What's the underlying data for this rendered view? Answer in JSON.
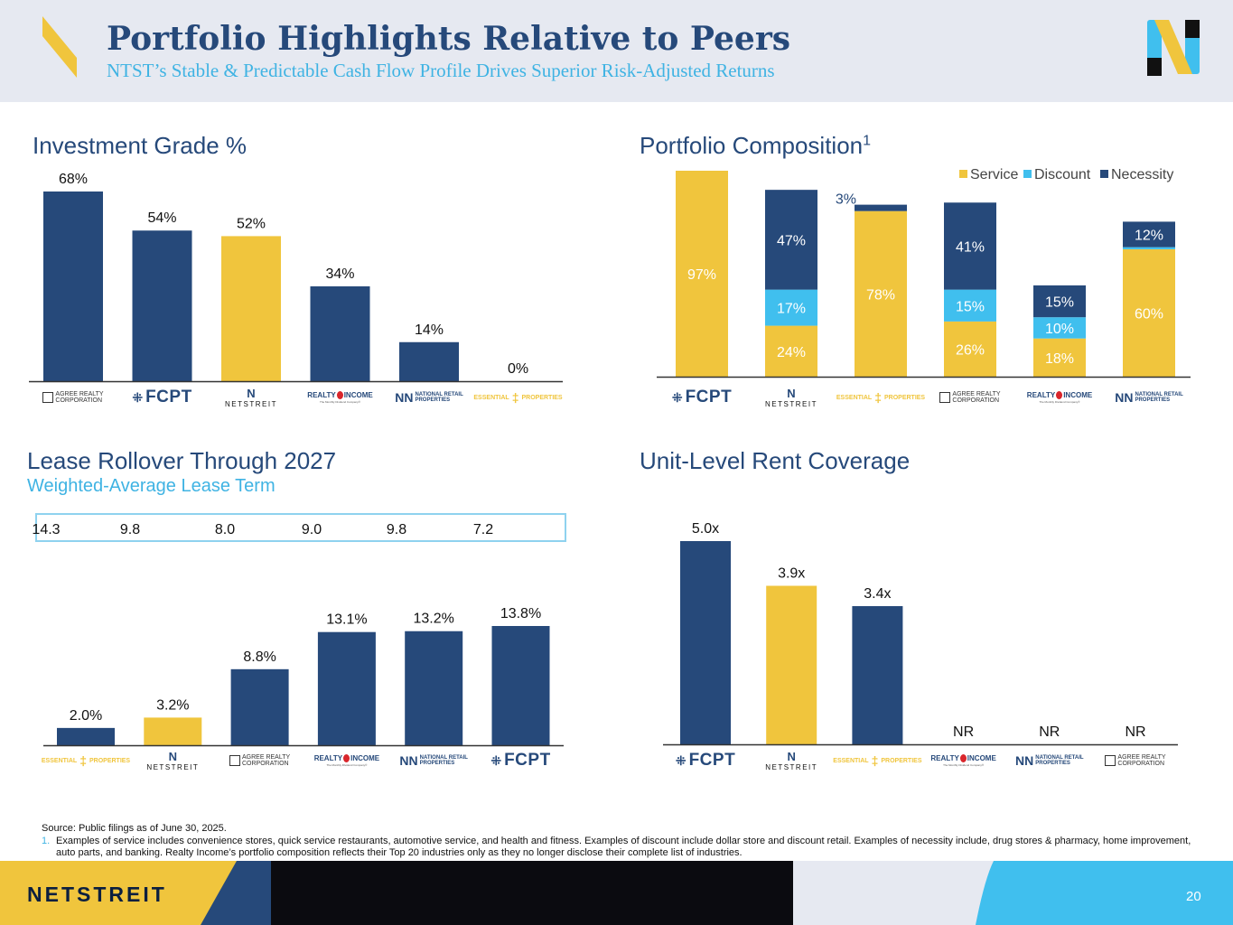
{
  "header": {
    "title": "Portfolio Highlights Relative to Peers",
    "subtitle": "NTST’s Stable & Predictable Cash Flow Profile Drives Superior Risk-Adjusted Returns"
  },
  "colors": {
    "navy": "#26497a",
    "gold": "#f0c53d",
    "cyan": "#40bfee",
    "dark": "#0b0b10",
    "header_bg": "#e6e9f1"
  },
  "logos": {
    "agree": {
      "line1": "AGREE REALTY",
      "line2": "CORPORATION"
    },
    "fcpt": {
      "text": "FCPT"
    },
    "netstreit": {
      "text": "NETSTREIT"
    },
    "realty": {
      "left": "REALTY",
      "right": "INCOME",
      "tag": "The Monthly Dividend Company®"
    },
    "nnn": {
      "line1": "NATIONAL RETAIL",
      "line2": "PROPERTIES"
    },
    "essential": {
      "left": "ESSENTIAL",
      "right": "PROPERTIES"
    }
  },
  "chart_data": [
    {
      "id": "ig",
      "type": "bar",
      "title": "Investment Grade %",
      "categories": [
        "Agree Realty",
        "FCPT",
        "NETSTREIT",
        "Realty Income",
        "National Retail Properties",
        "Essential Properties"
      ],
      "values": [
        68,
        54,
        52,
        34,
        14,
        0
      ],
      "labels": [
        "68%",
        "54%",
        "52%",
        "34%",
        "14%",
        "0%"
      ],
      "highlight": "NETSTREIT",
      "ylim": [
        0,
        68
      ]
    },
    {
      "id": "comp",
      "type": "bar",
      "stacked": true,
      "title": "Portfolio Composition",
      "title_sup": "1",
      "categories": [
        "FCPT",
        "NETSTREIT",
        "Essential Properties",
        "Agree Realty",
        "Realty Income",
        "National Retail Properties"
      ],
      "series": [
        {
          "name": "Service",
          "values": [
            97,
            24,
            78,
            26,
            18,
            60
          ]
        },
        {
          "name": "Discount",
          "values": [
            0,
            17,
            0,
            15,
            10,
            1
          ]
        },
        {
          "name": "Necessity",
          "values": [
            0,
            47,
            3,
            41,
            15,
            12
          ]
        }
      ],
      "labels": {
        "Service": [
          "97%",
          "24%",
          "78%",
          "26%",
          "18%",
          "60%"
        ],
        "Discount": [
          "",
          "17%",
          "",
          "15%",
          "10%",
          ""
        ],
        "Necessity": [
          "",
          "47%",
          "3%",
          "41%",
          "15%",
          "12%"
        ]
      },
      "legend": [
        "Service",
        "Discount",
        "Necessity"
      ],
      "legend_position": "top-right",
      "ylim": [
        0,
        97
      ]
    },
    {
      "id": "lease",
      "type": "bar",
      "title": "Lease Rollover Through 2027",
      "subtitle": "Weighted-Average Lease Term",
      "categories": [
        "Essential Properties",
        "NETSTREIT",
        "Agree Realty",
        "Realty Income",
        "National Retail Properties",
        "FCPT"
      ],
      "values": [
        2.0,
        3.2,
        8.8,
        13.1,
        13.2,
        13.8
      ],
      "labels": [
        "2.0%",
        "3.2%",
        "8.8%",
        "13.1%",
        "13.2%",
        "13.8%"
      ],
      "wale": [
        "14.3",
        "9.8",
        "8.0",
        "9.0",
        "9.8",
        "7.2"
      ],
      "highlight": "NETSTREIT",
      "ylim": [
        0,
        13.8
      ]
    },
    {
      "id": "rent",
      "type": "bar",
      "title": "Unit-Level Rent Coverage",
      "categories": [
        "FCPT",
        "NETSTREIT",
        "Essential Properties",
        "Realty Income",
        "National Retail Properties",
        "Agree Realty"
      ],
      "values": [
        5.0,
        3.9,
        3.4,
        null,
        null,
        null
      ],
      "labels": [
        "5.0x",
        "3.9x",
        "3.4x",
        "NR",
        "NR",
        "NR"
      ],
      "highlight": "NETSTREIT",
      "ylim": [
        0,
        5.0
      ]
    }
  ],
  "footnotes": {
    "source": "Source: Public filings as of June 30, 2025.",
    "note1_num": "1.",
    "note1": "Examples of service includes convenience stores, quick service restaurants, automotive service, and health and fitness. Examples of discount include dollar store and discount retail. Examples of necessity include, drug stores & pharmacy, home improvement, auto parts, and banking. Realty Income’s portfolio composition reflects their Top 20 industries only as they no longer disclose their complete list of industries."
  },
  "footer": {
    "brand": "NETSTREIT",
    "page_number": "20"
  }
}
